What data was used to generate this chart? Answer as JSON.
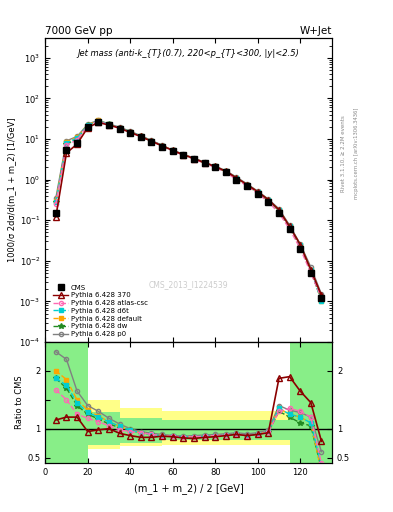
{
  "title_left": "7000 GeV pp",
  "title_right": "W+Jet",
  "plot_title": "Jet mass (anti-k_{T}(0.7), 220<p_{T}<300, |y|<2.5)",
  "watermark": "CMS_2013_I1224539",
  "ylabel_main": "1000/σ 2dσ/d(m_1 + m_2) [1/GeV]",
  "ylabel_ratio": "Ratio to CMS",
  "xlabel": "(m_1 + m_2) / 2 [GeV]",
  "right_label_top": "Rivet 3.1.10, ≥ 2.2M events",
  "right_label_bot": "mcplots.cern.ch [arXiv:1306.3436]",
  "x_data": [
    5,
    10,
    15,
    20,
    25,
    30,
    35,
    40,
    45,
    50,
    55,
    60,
    65,
    70,
    75,
    80,
    85,
    90,
    95,
    100,
    105,
    110,
    115,
    120,
    125,
    130
  ],
  "cms_y": [
    0.15,
    5.5,
    8.0,
    20.0,
    26.0,
    22.0,
    18.0,
    14.0,
    11.0,
    8.5,
    6.5,
    5.0,
    4.0,
    3.2,
    2.5,
    2.0,
    1.5,
    1.0,
    0.7,
    0.45,
    0.28,
    0.15,
    0.06,
    0.02,
    0.005,
    0.0012
  ],
  "p370_y": [
    0.12,
    4.5,
    7.5,
    19.0,
    25.5,
    22.0,
    18.5,
    14.5,
    11.5,
    8.8,
    6.8,
    5.2,
    4.1,
    3.3,
    2.6,
    2.1,
    1.6,
    1.1,
    0.75,
    0.5,
    0.32,
    0.18,
    0.07,
    0.025,
    0.006,
    0.0014
  ],
  "atlas_csc_y": [
    0.25,
    7.0,
    9.5,
    21.0,
    27.0,
    22.5,
    18.5,
    14.5,
    11.5,
    8.8,
    6.8,
    5.1,
    4.0,
    3.2,
    2.5,
    2.0,
    1.5,
    1.0,
    0.7,
    0.45,
    0.28,
    0.15,
    0.06,
    0.02,
    0.005,
    0.0012
  ],
  "d6t_y": [
    0.28,
    8.0,
    10.5,
    22.0,
    28.0,
    23.0,
    19.0,
    15.0,
    11.8,
    9.0,
    6.9,
    5.2,
    4.1,
    3.3,
    2.6,
    2.1,
    1.6,
    1.1,
    0.75,
    0.5,
    0.32,
    0.18,
    0.07,
    0.025,
    0.006,
    0.001
  ],
  "default_y": [
    0.3,
    8.5,
    11.0,
    22.5,
    28.5,
    23.0,
    19.0,
    15.0,
    11.8,
    9.0,
    6.9,
    5.2,
    4.1,
    3.3,
    2.6,
    2.1,
    1.6,
    1.1,
    0.75,
    0.5,
    0.32,
    0.18,
    0.07,
    0.025,
    0.006,
    0.001
  ],
  "dw_y": [
    0.28,
    7.5,
    10.0,
    21.5,
    27.5,
    22.8,
    18.8,
    14.8,
    11.6,
    8.8,
    6.8,
    5.1,
    4.05,
    3.25,
    2.55,
    2.05,
    1.55,
    1.05,
    0.72,
    0.47,
    0.3,
    0.17,
    0.065,
    0.022,
    0.0055,
    0.0011
  ],
  "p0_y": [
    0.35,
    9.0,
    11.5,
    23.0,
    29.0,
    23.5,
    19.5,
    15.5,
    12.0,
    9.2,
    7.0,
    5.3,
    4.2,
    3.4,
    2.65,
    2.15,
    1.65,
    1.15,
    0.78,
    0.52,
    0.33,
    0.19,
    0.075,
    0.026,
    0.007,
    0.0015
  ],
  "ratio_x": [
    5,
    10,
    15,
    20,
    25,
    30,
    35,
    40,
    45,
    50,
    55,
    60,
    65,
    70,
    75,
    80,
    85,
    90,
    95,
    100,
    105,
    110,
    115,
    120,
    125,
    130
  ],
  "p370_ratio": [
    1.15,
    1.2,
    1.2,
    0.95,
    0.98,
    1.0,
    0.92,
    0.88,
    0.85,
    0.85,
    0.87,
    0.86,
    0.84,
    0.83,
    0.85,
    0.86,
    0.88,
    0.9,
    0.88,
    0.9,
    0.93,
    1.87,
    1.9,
    1.65,
    1.45,
    0.78
  ],
  "atlas_csc_ratio": [
    1.67,
    1.5,
    1.25,
    1.18,
    1.12,
    1.05,
    0.98,
    0.95,
    0.93,
    0.9,
    0.88,
    0.87,
    0.86,
    0.86,
    0.87,
    0.88,
    0.89,
    0.9,
    0.88,
    0.9,
    0.94,
    1.3,
    1.35,
    1.3,
    1.2,
    0.4
  ],
  "d6t_ratio": [
    1.87,
    1.75,
    1.45,
    1.28,
    1.2,
    1.12,
    1.04,
    0.97,
    0.93,
    0.9,
    0.88,
    0.87,
    0.86,
    0.86,
    0.87,
    0.88,
    0.89,
    0.9,
    0.88,
    0.9,
    0.95,
    1.35,
    1.25,
    1.2,
    1.1,
    0.35
  ],
  "default_ratio": [
    2.0,
    1.85,
    1.5,
    1.32,
    1.22,
    1.12,
    1.04,
    0.97,
    0.93,
    0.9,
    0.88,
    0.87,
    0.86,
    0.86,
    0.87,
    0.88,
    0.89,
    0.9,
    0.88,
    0.9,
    0.95,
    1.35,
    1.25,
    1.2,
    1.1,
    0.25
  ],
  "dw_ratio": [
    1.87,
    1.7,
    1.4,
    1.25,
    1.17,
    1.08,
    1.02,
    0.97,
    0.93,
    0.9,
    0.88,
    0.87,
    0.86,
    0.86,
    0.87,
    0.88,
    0.89,
    0.9,
    0.88,
    0.9,
    0.94,
    1.3,
    1.2,
    1.1,
    1.05,
    0.3
  ],
  "p0_ratio": [
    2.33,
    2.2,
    1.65,
    1.4,
    1.3,
    1.18,
    1.08,
    1.0,
    0.95,
    0.92,
    0.9,
    0.88,
    0.87,
    0.88,
    0.89,
    0.9,
    0.91,
    0.93,
    0.91,
    0.93,
    0.98,
    1.4,
    1.32,
    1.28,
    1.2,
    0.6
  ],
  "yellow_x_edges": [
    0,
    10,
    20,
    35,
    55,
    95,
    115,
    125,
    140
  ],
  "yellow_low": [
    0.4,
    0.4,
    0.65,
    0.7,
    0.72,
    0.72,
    0.4,
    0.4,
    0.4
  ],
  "yellow_high": [
    2.5,
    2.5,
    1.5,
    1.35,
    1.3,
    1.3,
    2.5,
    2.5,
    2.5
  ],
  "green_x_edges": [
    0,
    10,
    20,
    35,
    55,
    95,
    115,
    125,
    140
  ],
  "green_low": [
    0.4,
    0.4,
    0.72,
    0.76,
    0.8,
    0.8,
    0.4,
    0.4,
    0.4
  ],
  "green_high": [
    2.5,
    2.5,
    1.28,
    1.18,
    1.15,
    1.15,
    2.5,
    2.5,
    2.5
  ],
  "colors": {
    "cms": "#000000",
    "p370": "#8b0000",
    "atlas_csc": "#ff69b4",
    "d6t": "#00ced1",
    "default": "#ffa500",
    "dw": "#228b22",
    "p0": "#808080"
  },
  "xlim": [
    0,
    135
  ],
  "ylim_main": [
    0.0001,
    3000.0
  ],
  "ylim_ratio": [
    0.4,
    2.5
  ]
}
